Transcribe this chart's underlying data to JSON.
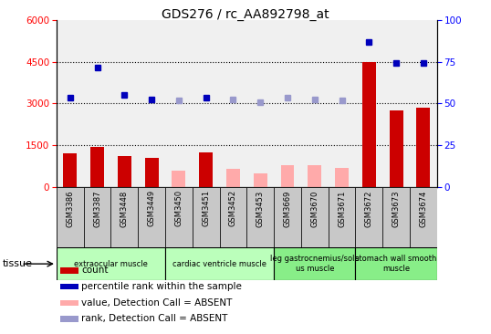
{
  "title": "GDS276 / rc_AA892798_at",
  "samples": [
    "GSM3386",
    "GSM3387",
    "GSM3448",
    "GSM3449",
    "GSM3450",
    "GSM3451",
    "GSM3452",
    "GSM3453",
    "GSM3669",
    "GSM3670",
    "GSM3671",
    "GSM3672",
    "GSM3673",
    "GSM3674"
  ],
  "bar_values": [
    1200,
    1450,
    1100,
    1050,
    null,
    1250,
    null,
    null,
    null,
    null,
    null,
    4500,
    2750,
    2850
  ],
  "bar_values_absent": [
    null,
    null,
    null,
    null,
    580,
    null,
    650,
    490,
    780,
    780,
    680,
    null,
    null,
    null
  ],
  "dot_values_left_scale": [
    3200,
    4300,
    3300,
    3150,
    3100,
    3200,
    3150,
    3050,
    3200,
    3150,
    3100,
    5200,
    4450,
    4450
  ],
  "dot_absent": [
    false,
    false,
    false,
    false,
    true,
    false,
    true,
    true,
    true,
    true,
    true,
    false,
    false,
    false
  ],
  "ylim_left": [
    0,
    6000
  ],
  "ylim_right": [
    0,
    100
  ],
  "yticks_left": [
    0,
    1500,
    3000,
    4500,
    6000
  ],
  "yticks_right": [
    0,
    25,
    50,
    75,
    100
  ],
  "bar_color_present": "#cc0000",
  "bar_color_absent": "#ffaaaa",
  "dot_color_present": "#0000bb",
  "dot_color_absent": "#9999cc",
  "plot_bg": "#f0f0f0",
  "xtick_bg": "#c8c8c8",
  "hgrid_color": "#000000",
  "groups": [
    {
      "label": "extraocular muscle",
      "start": 0,
      "end": 3,
      "color": "#bbffbb"
    },
    {
      "label": "cardiac ventricle muscle",
      "start": 4,
      "end": 7,
      "color": "#bbffbb"
    },
    {
      "label": "leg gastrocnemius/sole\nus muscle",
      "start": 8,
      "end": 10,
      "color": "#88ee88"
    },
    {
      "label": "stomach wall smooth\nmuscle",
      "start": 11,
      "end": 13,
      "color": "#88ee88"
    }
  ],
  "legend_items": [
    {
      "label": "count",
      "color": "#cc0000"
    },
    {
      "label": "percentile rank within the sample",
      "color": "#0000bb"
    },
    {
      "label": "value, Detection Call = ABSENT",
      "color": "#ffaaaa"
    },
    {
      "label": "rank, Detection Call = ABSENT",
      "color": "#9999cc"
    }
  ]
}
